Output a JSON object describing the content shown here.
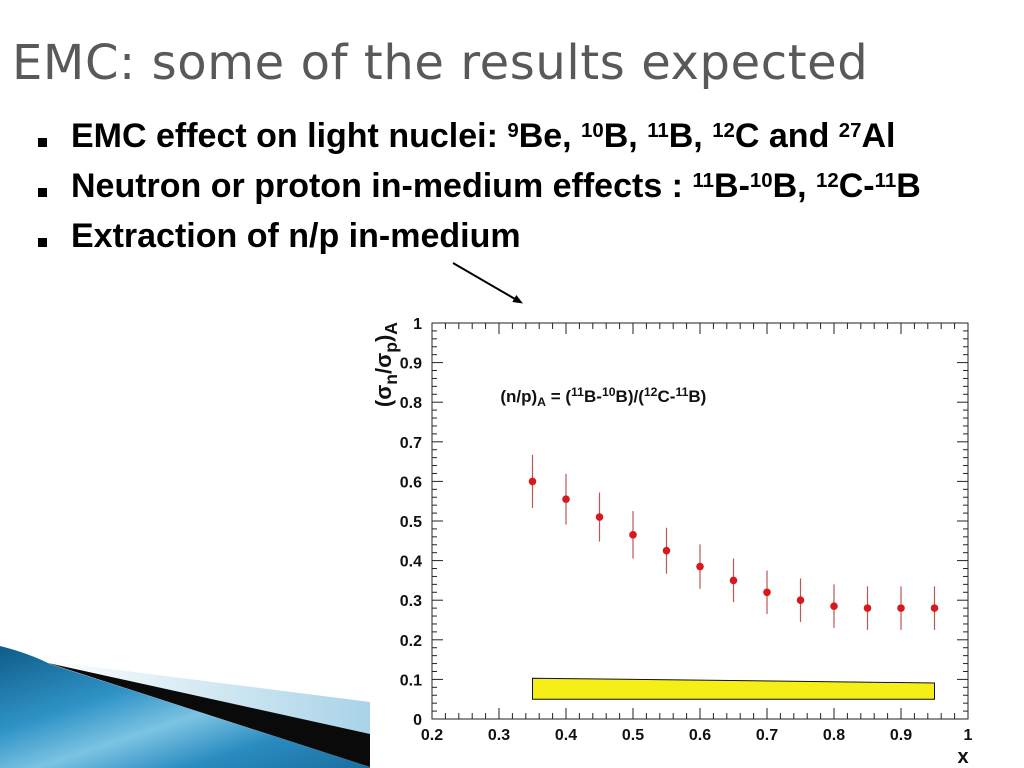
{
  "slide": {
    "title": "EMC: some of the results expected",
    "bullets": [
      {
        "segments": [
          {
            "t": "EMC effect on light nuclei: "
          },
          {
            "t": "9",
            "sup": true
          },
          {
            "t": "Be, "
          },
          {
            "t": "10",
            "sup": true
          },
          {
            "t": "B, "
          },
          {
            "t": "11",
            "sup": true
          },
          {
            "t": "B, "
          },
          {
            "t": "12",
            "sup": true
          },
          {
            "t": "C and "
          },
          {
            "t": "27",
            "sup": true
          },
          {
            "t": "Al"
          }
        ]
      },
      {
        "segments": [
          {
            "t": "Neutron or proton in-medium effects : "
          },
          {
            "t": "11",
            "sup": true
          },
          {
            "t": "B-"
          },
          {
            "t": "10",
            "sup": true
          },
          {
            "t": "B, "
          },
          {
            "t": "12",
            "sup": true
          },
          {
            "t": "C-"
          },
          {
            "t": "11",
            "sup": true
          },
          {
            "t": "B"
          }
        ]
      },
      {
        "segments": [
          {
            "t": "Extraction of n/p in-medium"
          }
        ]
      }
    ]
  },
  "colors": {
    "title": "#595959",
    "text": "#000000",
    "data_point": "#d7191c",
    "error_bar": "#bf5555",
    "band_fill": "#f5ee17",
    "accent_blue": "#2e8fc4"
  },
  "chart_data": {
    "type": "scatter",
    "x": [
      0.35,
      0.4,
      0.45,
      0.5,
      0.55,
      0.6,
      0.65,
      0.7,
      0.75,
      0.8,
      0.85,
      0.9,
      0.95
    ],
    "y": [
      0.6,
      0.555,
      0.51,
      0.465,
      0.425,
      0.385,
      0.35,
      0.32,
      0.3,
      0.285,
      0.28,
      0.28,
      0.28
    ],
    "y_err": [
      0.067,
      0.064,
      0.062,
      0.06,
      0.058,
      0.056,
      0.055,
      0.055,
      0.055,
      0.055,
      0.055,
      0.055,
      0.055
    ],
    "band": {
      "x": [
        0.35,
        0.95
      ],
      "y_low": [
        0.05,
        0.05
      ],
      "y_high": [
        0.103,
        0.091
      ]
    },
    "xlabel": "x",
    "ylabel": [
      {
        "t": "(σ"
      },
      {
        "t": "n",
        "sub": true
      },
      {
        "t": "/σ"
      },
      {
        "t": "p",
        "sub": true
      },
      {
        "t": ")"
      },
      {
        "t": "A",
        "sub": true
      }
    ],
    "annotation": [
      {
        "t": "(n/p)"
      },
      {
        "t": "A",
        "sub": true
      },
      {
        "t": " = ("
      },
      {
        "t": "11",
        "sup": true
      },
      {
        "t": "B-"
      },
      {
        "t": "10",
        "sup": true
      },
      {
        "t": "B)/("
      },
      {
        "t": "12",
        "sup": true
      },
      {
        "t": "C-"
      },
      {
        "t": "11",
        "sup": true
      },
      {
        "t": "B)"
      }
    ],
    "xlim": [
      0.2,
      1
    ],
    "ylim": [
      0,
      1
    ],
    "xtick_labels": [
      "0.2",
      "0.3",
      "0.4",
      "0.5",
      "0.6",
      "0.7",
      "0.8",
      "0.9",
      "1"
    ],
    "ytick_labels": [
      "0",
      "0.1",
      "0.2",
      "0.3",
      "0.4",
      "0.5",
      "0.6",
      "0.7",
      "0.8",
      "0.9",
      "1"
    ],
    "grid": false
  }
}
